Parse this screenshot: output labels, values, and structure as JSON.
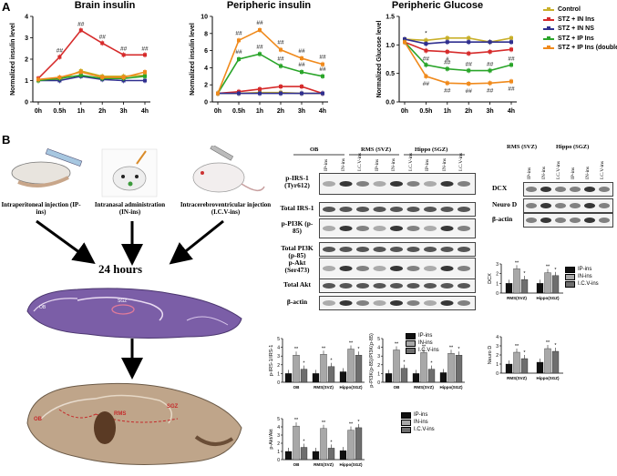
{
  "panel_a_label": "A",
  "panel_b_label": "B",
  "chart_data": [
    {
      "type": "line",
      "title": "Brain insulin",
      "ylabel": "Normalized insulin level",
      "x": [
        "0h",
        "0.5h",
        "1h",
        "2h",
        "3h",
        "4h"
      ],
      "ylim": [
        0,
        4
      ],
      "yticks": [
        "0",
        "1",
        "2",
        "3",
        "4"
      ],
      "series": [
        {
          "name": "Control",
          "color": "#c9b02a",
          "values": [
            1.0,
            1.05,
            1.45,
            1.2,
            1.2,
            1.25
          ]
        },
        {
          "name": "STZ + IN Ins",
          "color": "#d62b2b",
          "values": [
            1.1,
            2.1,
            3.35,
            2.75,
            2.2,
            2.2
          ]
        },
        {
          "name": "STZ + IN NS",
          "color": "#2f2f8f",
          "values": [
            1.0,
            1.0,
            1.2,
            1.05,
            1.0,
            1.0
          ]
        },
        {
          "name": "STZ + IP Ins",
          "color": "#2aa52a",
          "values": [
            1.0,
            1.1,
            1.25,
            1.1,
            1.1,
            1.2
          ]
        },
        {
          "name": "STZ + IP Ins (double doses)",
          "color": "#f08a1c",
          "values": [
            1.05,
            1.15,
            1.4,
            1.15,
            1.15,
            1.4
          ]
        }
      ],
      "annotations": [
        "##",
        "##",
        "##",
        "##",
        "##"
      ]
    },
    {
      "type": "line",
      "title": "Peripheric insulin",
      "ylabel": "Normalized insulin level",
      "x": [
        "0h",
        "0.5h",
        "1h",
        "2h",
        "3h",
        "4h"
      ],
      "ylim": [
        0,
        10
      ],
      "yticks": [
        "0",
        "2",
        "4",
        "6",
        "8",
        "10"
      ],
      "series": [
        {
          "name": "Control",
          "color": "#c9b02a",
          "values": [
            1.0,
            1.0,
            1.1,
            1.1,
            1.0,
            1.0
          ]
        },
        {
          "name": "STZ + IN Ins",
          "color": "#d62b2b",
          "values": [
            1.0,
            1.2,
            1.5,
            1.8,
            1.8,
            1.0
          ]
        },
        {
          "name": "STZ + IN NS",
          "color": "#2f2f8f",
          "values": [
            1.0,
            1.0,
            1.0,
            1.0,
            1.0,
            1.0
          ]
        },
        {
          "name": "STZ + IP Ins",
          "color": "#2aa52a",
          "values": [
            1.0,
            5.0,
            5.6,
            4.2,
            3.5,
            3.0
          ]
        },
        {
          "name": "STZ + IP Ins (double doses)",
          "color": "#f08a1c",
          "values": [
            1.0,
            7.2,
            8.4,
            6.1,
            5.1,
            4.4
          ]
        }
      ],
      "annotations": [
        "##",
        "##",
        "##",
        "##",
        "##",
        "##",
        "##",
        "##",
        "##",
        "##"
      ]
    },
    {
      "type": "line",
      "title": "Peripheric Glucose",
      "ylabel": "Normalized Glucose level",
      "x": [
        "0h",
        "0.5h",
        "1h",
        "2h",
        "3h",
        "4h"
      ],
      "ylim": [
        0,
        1.5
      ],
      "yticks": [
        "0.0",
        "0.5",
        "1.0",
        "1.5"
      ],
      "series": [
        {
          "name": "Control",
          "color": "#c9b02a",
          "values": [
            1.1,
            1.08,
            1.12,
            1.12,
            1.05,
            1.12
          ]
        },
        {
          "name": "STZ + IN Ins",
          "color": "#d62b2b",
          "values": [
            1.05,
            0.9,
            0.88,
            0.85,
            0.88,
            0.92
          ]
        },
        {
          "name": "STZ + IN NS",
          "color": "#2f2f8f",
          "values": [
            1.1,
            1.02,
            1.05,
            1.05,
            1.05,
            1.05
          ]
        },
        {
          "name": "STZ + IP Ins",
          "color": "#2aa52a",
          "values": [
            1.05,
            0.65,
            0.58,
            0.55,
            0.55,
            0.65
          ]
        },
        {
          "name": "STZ + IP Ins (double doses)",
          "color": "#f08a1c",
          "values": [
            1.05,
            0.45,
            0.33,
            0.32,
            0.33,
            0.36
          ]
        }
      ],
      "annotations": [
        "*",
        "#",
        "##",
        "##",
        "##",
        "##",
        "##",
        "##",
        "##",
        "##",
        "##",
        "##"
      ]
    },
    {
      "type": "bar",
      "ylabel": "p-IRS-1/IRS-1",
      "categories": [
        "OB",
        "RMS(SVZ)",
        "Hippo(SGZ)"
      ],
      "ylim": [
        0,
        5
      ],
      "series": [
        {
          "name": "IP-ins",
          "values": [
            1.0,
            1.0,
            1.2
          ]
        },
        {
          "name": "IN-ins",
          "values": [
            3.1,
            3.2,
            3.8
          ]
        },
        {
          "name": "I.C.V-ins",
          "values": [
            1.5,
            1.8,
            3.1
          ]
        }
      ]
    },
    {
      "type": "bar",
      "ylabel": "p-PI3K(p-85)/PI3K(p-85)",
      "categories": [
        "OB",
        "RMS(SVZ)",
        "Hippo(SGZ)"
      ],
      "ylim": [
        0,
        5
      ],
      "series": [
        {
          "name": "IP-ins",
          "values": [
            1.0,
            1.0,
            1.1
          ]
        },
        {
          "name": "IN-ins",
          "values": [
            3.7,
            3.4,
            3.3
          ]
        },
        {
          "name": "I.C.V-ins",
          "values": [
            1.6,
            1.5,
            3.1
          ]
        }
      ]
    },
    {
      "type": "bar",
      "ylabel": "p-Akt/Akt",
      "categories": [
        "OB",
        "RMS(SVZ)",
        "Hippo(SGZ)"
      ],
      "ylim": [
        0,
        5
      ],
      "series": [
        {
          "name": "IP-ins",
          "values": [
            1.0,
            1.0,
            1.1
          ]
        },
        {
          "name": "IN-ins",
          "values": [
            4.1,
            3.8,
            3.6
          ]
        },
        {
          "name": "I.C.V-ins",
          "values": [
            1.5,
            1.4,
            3.9
          ]
        }
      ]
    },
    {
      "type": "bar",
      "ylabel": "DCX",
      "categories": [
        "RMS(SVZ)",
        "Hippo(SGZ)"
      ],
      "ylim": [
        0,
        3
      ],
      "series": [
        {
          "name": "IP-ins",
          "values": [
            1.0,
            1.0
          ]
        },
        {
          "name": "IN-ins",
          "values": [
            2.5,
            2.1
          ]
        },
        {
          "name": "I.C.V-ins",
          "values": [
            1.4,
            1.8
          ]
        }
      ]
    },
    {
      "type": "bar",
      "ylabel": "Neuro D",
      "categories": [
        "RMS(SVZ)",
        "Hippo(SGZ)"
      ],
      "ylim": [
        0,
        4
      ],
      "series": [
        {
          "name": "IP-ins",
          "values": [
            1.0,
            1.2
          ]
        },
        {
          "name": "IN-ins",
          "values": [
            2.3,
            2.7
          ]
        },
        {
          "name": "I.C.V-ins",
          "values": [
            1.6,
            2.4
          ]
        }
      ]
    }
  ],
  "legend": [
    "Control",
    "STZ + IN Ins",
    "STZ + IN NS",
    "STZ + IP Ins",
    "STZ + IP Ins (double doses)"
  ],
  "admin": {
    "ip": "Intraperitoneal injection (IP-ins)",
    "in": "Intranasal administration (IN-ins)",
    "icv": "Intracerebroventricular injection (I.C.V-ins)"
  },
  "hours": "24 hours",
  "brain_labels": {
    "ob": "OB",
    "rms": "RMS",
    "sgz": "SGZ",
    "sgz_top": "SGZ",
    "ob_top": "OB"
  },
  "blot": {
    "regions": [
      "OB",
      "RMS (SVZ)",
      "Hippo (SGZ)"
    ],
    "cols": [
      "IP-ins",
      "IN-ins",
      "I.C.V-ins",
      "IP-ins",
      "IN-ins",
      "I.C.V-ins",
      "IP-ins",
      "IN-ins",
      "I.C.V-ins"
    ],
    "rows": [
      "p-IRS-1 (Tyr612)",
      "Total IRS-1",
      "p-PI3K (p-85)",
      "Total PI3K (p-85)",
      "p-Akt (Ser473)",
      "Total Akt",
      "β-actin"
    ]
  },
  "blot2": {
    "regions": [
      "RMS (SVZ)",
      "Hippo (SGZ)"
    ],
    "cols": [
      "IP-ins",
      "IN-ins",
      "I.C.V-ins",
      "IP-ins",
      "IN-ins",
      "I.C.V-ins"
    ],
    "rows": [
      "DCX",
      "Neuro D",
      "β-actin"
    ]
  },
  "bar_legend": [
    "IP-ins",
    "IN-ins",
    "I.C.V-ins"
  ],
  "bar_colors": [
    "#111111",
    "#a8a8a8",
    "#6e6e6e"
  ]
}
